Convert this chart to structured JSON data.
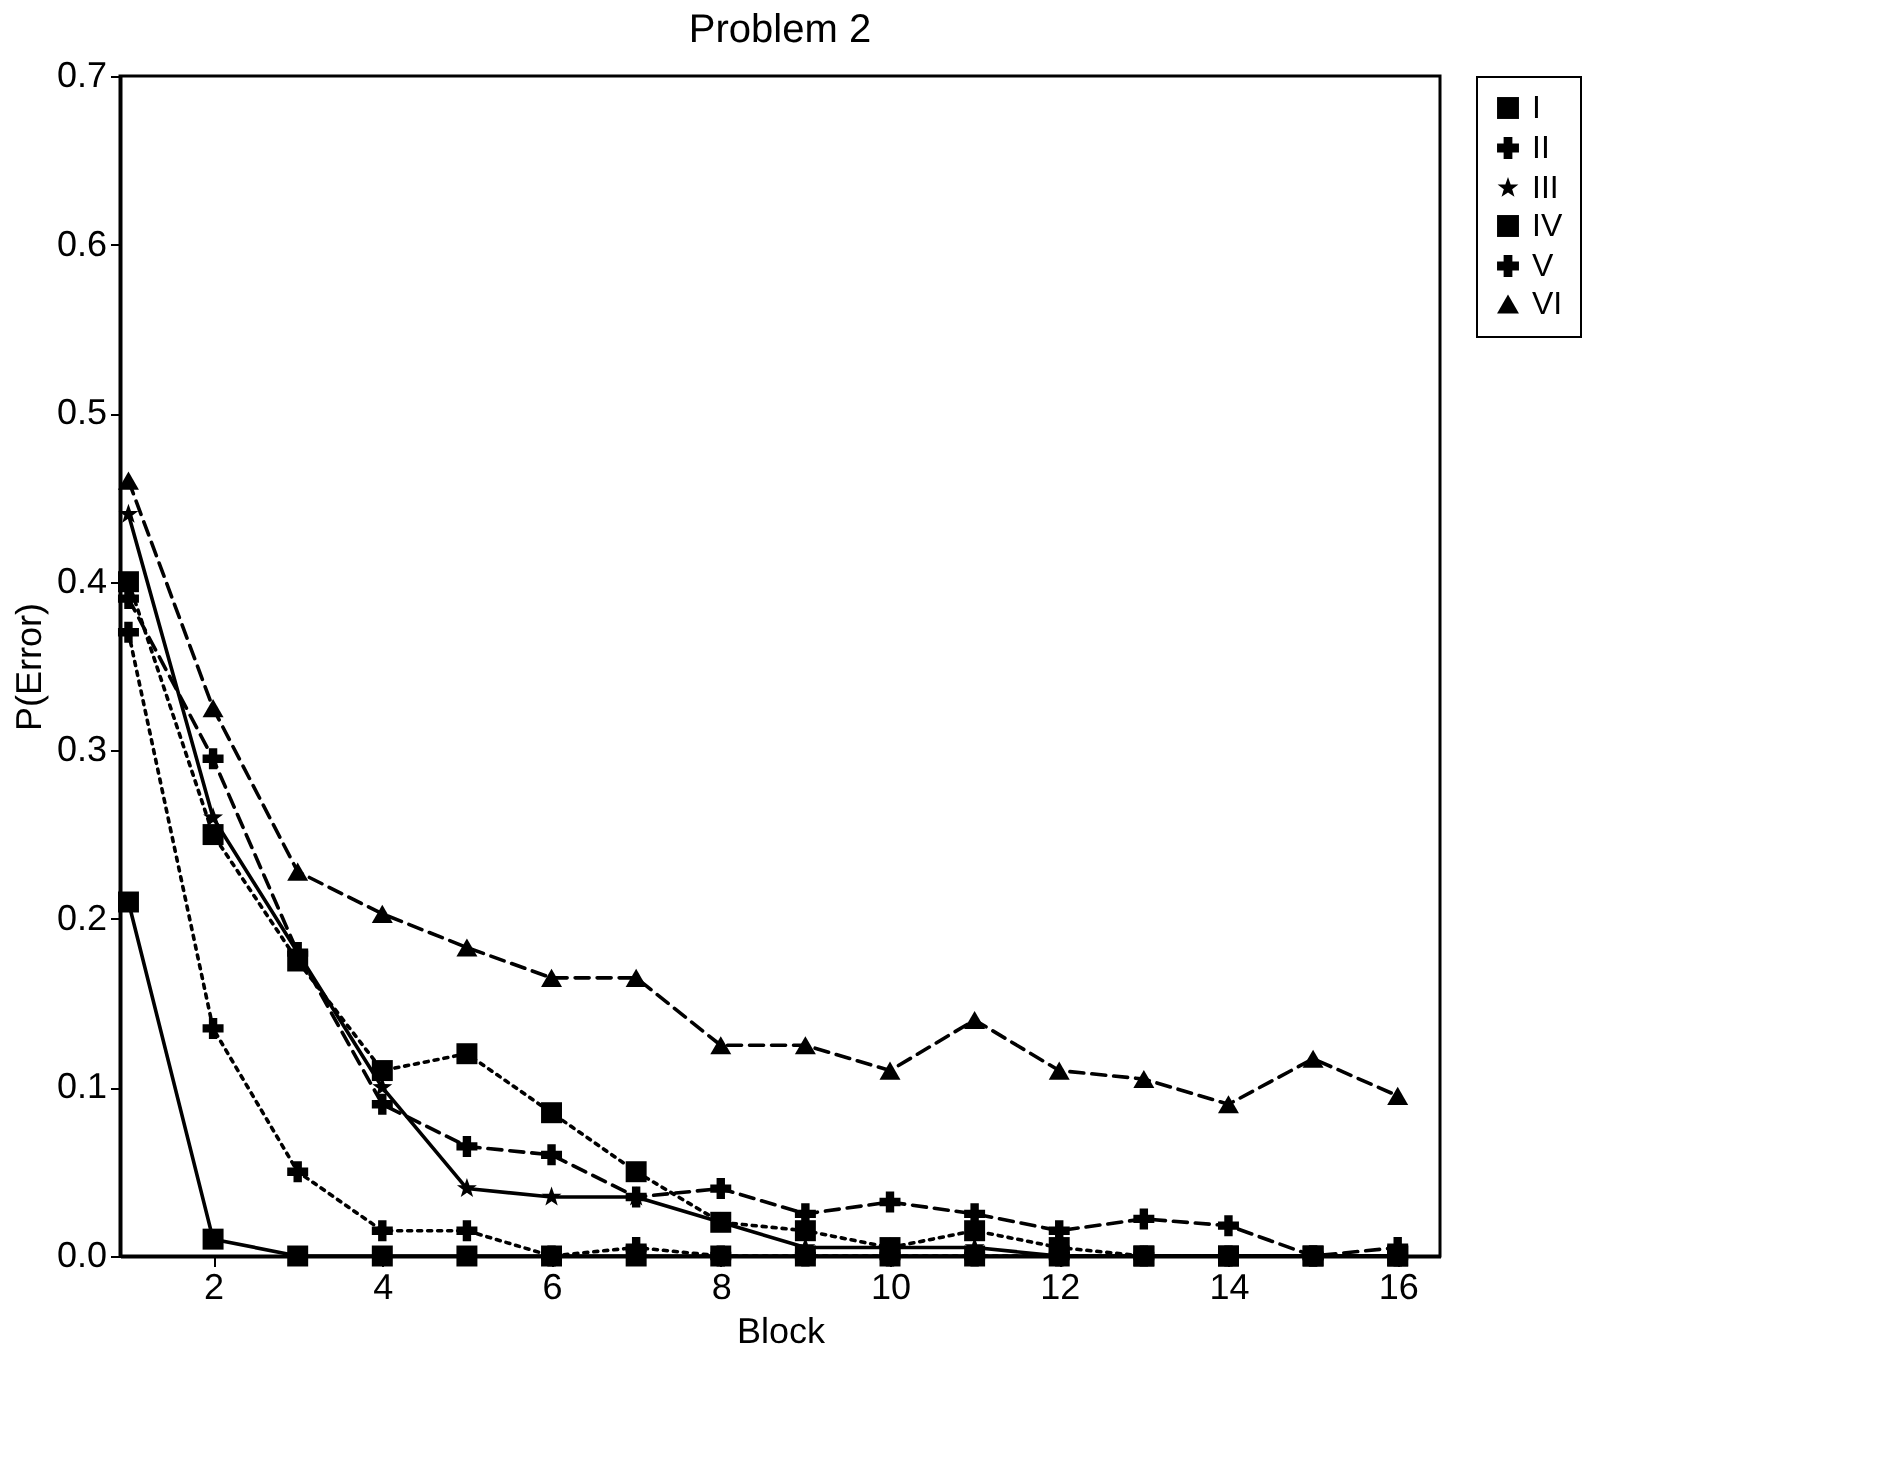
{
  "chart_data": {
    "type": "line",
    "title": "Problem 2",
    "xlabel": "Block",
    "ylabel": "P(Error)",
    "x": [
      1,
      2,
      3,
      4,
      5,
      6,
      7,
      8,
      9,
      10,
      11,
      12,
      13,
      14,
      15,
      16
    ],
    "series": [
      {
        "name": "I",
        "color": "#000000",
        "marker": "square",
        "line_style": "solid",
        "values": [
          0.21,
          0.01,
          0,
          0,
          0,
          0,
          0,
          0,
          0,
          0,
          0,
          0,
          0,
          0,
          0,
          0
        ]
      },
      {
        "name": "II",
        "color": "#000000",
        "marker": "cross",
        "line_style": "dotted",
        "values": [
          0.37,
          0.135,
          0.05,
          0.015,
          0.015,
          0,
          0.005,
          0,
          0,
          0,
          0,
          0,
          0,
          0,
          0,
          0
        ]
      },
      {
        "name": "III",
        "color": "#000000",
        "marker": "star",
        "line_style": "solid",
        "values": [
          0.44,
          0.26,
          0.18,
          0.1,
          0.04,
          0.035,
          0.035,
          0.02,
          0.005,
          0.005,
          0.005,
          0,
          0,
          0,
          0,
          0
        ]
      },
      {
        "name": "IV",
        "color": "#000000",
        "marker": "square",
        "line_style": "dotted",
        "values": [
          0.4,
          0.25,
          0.175,
          0.11,
          0.12,
          0.085,
          0.05,
          0.02,
          0.015,
          0.005,
          0.015,
          0.005,
          0,
          0,
          0,
          0
        ]
      },
      {
        "name": "V",
        "color": "#000000",
        "marker": "cross",
        "line_style": "dashed",
        "values": [
          0.39,
          0.295,
          0.18,
          0.09,
          0.065,
          0.06,
          0.035,
          0.04,
          0.025,
          0.032,
          0.025,
          0.015,
          0.022,
          0.018,
          0,
          0.005
        ]
      },
      {
        "name": "VI",
        "color": "#000000",
        "marker": "triangle",
        "line_style": "dashed",
        "values": [
          0.46,
          0.325,
          0.228,
          0.203,
          0.183,
          0.165,
          0.165,
          0.125,
          0.125,
          0.11,
          0.14,
          0.11,
          0.105,
          0.09,
          0.117,
          0.095
        ]
      }
    ],
    "xlim": [
      0.9,
      16.5
    ],
    "xticks": [
      2,
      4,
      6,
      8,
      10,
      12,
      14,
      16
    ],
    "ylim": [
      0,
      0.7
    ],
    "yticks": [
      {
        "value": 0,
        "label": "0.0"
      },
      {
        "value": 0.1,
        "label": "0.1"
      },
      {
        "value": 0.2,
        "label": "0.2"
      },
      {
        "value": 0.3,
        "label": "0.3"
      },
      {
        "value": 0.4,
        "label": "0.4"
      },
      {
        "value": 0.5,
        "label": "0.5"
      },
      {
        "value": 0.6,
        "label": "0.6"
      },
      {
        "value": 0.7,
        "label": "0.7"
      }
    ],
    "grid": false,
    "legend": "top right"
  }
}
